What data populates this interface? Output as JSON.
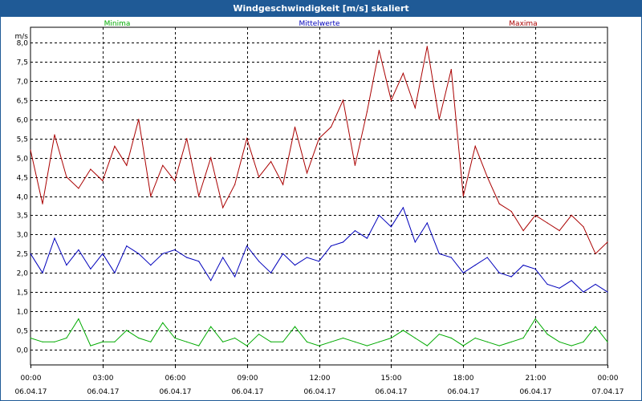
{
  "window": {
    "title": "Windgeschwindigkeit [m/s] skaliert"
  },
  "chart_data": {
    "type": "line",
    "title": "Windgeschwindigkeit [m/s] skaliert",
    "ylabel": "m/s",
    "ylim": [
      -0.4,
      8.4
    ],
    "yticks": [
      "0,0",
      "0,5",
      "1,0",
      "1,5",
      "2,0",
      "2,5",
      "3,0",
      "3,5",
      "4,0",
      "4,5",
      "5,0",
      "5,5",
      "6,0",
      "6,5",
      "7,0",
      "7,5",
      "8,0"
    ],
    "ytick_values": [
      0,
      0.5,
      1,
      1.5,
      2,
      2.5,
      3,
      3.5,
      4,
      4.5,
      5,
      5.5,
      6,
      6.5,
      7,
      7.5,
      8
    ],
    "xlim": [
      0,
      24
    ],
    "xticks": [
      {
        "time": "00:00",
        "date": "06.04.17",
        "h": 0
      },
      {
        "time": "03:00",
        "date": "06.04.17",
        "h": 3
      },
      {
        "time": "06:00",
        "date": "06.04.17",
        "h": 6
      },
      {
        "time": "09:00",
        "date": "06.04.17",
        "h": 9
      },
      {
        "time": "12:00",
        "date": "06.04.17",
        "h": 12
      },
      {
        "time": "15:00",
        "date": "06.04.17",
        "h": 15
      },
      {
        "time": "18:00",
        "date": "06.04.17",
        "h": 18
      },
      {
        "time": "21:00",
        "date": "06.04.17",
        "h": 21
      },
      {
        "time": "00:00",
        "date": "07.04.17",
        "h": 24
      }
    ],
    "grid": true,
    "legend": "top",
    "series": [
      {
        "name": "Minima",
        "color": "#00aa00",
        "x": [
          0,
          0.5,
          1,
          1.5,
          2,
          2.5,
          3,
          3.5,
          4,
          4.5,
          5,
          5.5,
          6,
          6.5,
          7,
          7.5,
          8,
          8.5,
          9,
          9.5,
          10,
          10.5,
          11,
          11.5,
          12,
          12.5,
          13,
          13.5,
          14,
          14.5,
          15,
          15.5,
          16,
          16.5,
          17,
          17.5,
          18,
          18.5,
          19,
          19.5,
          20,
          20.5,
          21,
          21.5,
          22,
          22.5,
          23,
          23.5,
          24
        ],
        "values": [
          0.3,
          0.2,
          0.2,
          0.3,
          0.8,
          0.1,
          0.2,
          0.2,
          0.5,
          0.3,
          0.2,
          0.7,
          0.3,
          0.2,
          0.1,
          0.6,
          0.2,
          0.3,
          0.1,
          0.4,
          0.2,
          0.2,
          0.6,
          0.2,
          0.1,
          0.2,
          0.3,
          0.2,
          0.1,
          0.2,
          0.3,
          0.5,
          0.3,
          0.1,
          0.4,
          0.3,
          0.1,
          0.3,
          0.2,
          0.1,
          0.2,
          0.3,
          0.8,
          0.4,
          0.2,
          0.1,
          0.2,
          0.6,
          0.2
        ]
      },
      {
        "name": "Mittelwerte",
        "color": "#0000bb",
        "x": [
          0,
          0.5,
          1,
          1.5,
          2,
          2.5,
          3,
          3.5,
          4,
          4.5,
          5,
          5.5,
          6,
          6.5,
          7,
          7.5,
          8,
          8.5,
          9,
          9.5,
          10,
          10.5,
          11,
          11.5,
          12,
          12.5,
          13,
          13.5,
          14,
          14.5,
          15,
          15.5,
          16,
          16.5,
          17,
          17.5,
          18,
          18.5,
          19,
          19.5,
          20,
          20.5,
          21,
          21.5,
          22,
          22.5,
          23,
          23.5,
          24
        ],
        "values": [
          2.5,
          2.0,
          2.9,
          2.2,
          2.6,
          2.1,
          2.5,
          2.0,
          2.7,
          2.5,
          2.2,
          2.5,
          2.6,
          2.4,
          2.3,
          1.8,
          2.4,
          1.9,
          2.7,
          2.3,
          2.0,
          2.5,
          2.2,
          2.4,
          2.3,
          2.7,
          2.8,
          3.1,
          2.9,
          3.5,
          3.2,
          3.7,
          2.8,
          3.3,
          2.5,
          2.4,
          2.0,
          2.2,
          2.4,
          2.0,
          1.9,
          2.2,
          2.1,
          1.7,
          1.6,
          1.8,
          1.5,
          1.7,
          1.5
        ]
      },
      {
        "name": "Maxima",
        "color": "#aa0000",
        "x": [
          0,
          0.5,
          1,
          1.5,
          2,
          2.5,
          3,
          3.5,
          4,
          4.5,
          5,
          5.5,
          6,
          6.5,
          7,
          7.5,
          8,
          8.5,
          9,
          9.5,
          10,
          10.5,
          11,
          11.5,
          12,
          12.5,
          13,
          13.5,
          14,
          14.5,
          15,
          15.5,
          16,
          16.5,
          17,
          17.5,
          18,
          18.5,
          19,
          19.5,
          20,
          20.5,
          21,
          21.5,
          22,
          22.5,
          23,
          23.5,
          24
        ],
        "values": [
          5.2,
          3.8,
          5.6,
          4.5,
          4.2,
          4.7,
          4.4,
          5.3,
          4.8,
          6.0,
          4.0,
          4.8,
          4.4,
          5.5,
          4.0,
          5.0,
          3.7,
          4.3,
          5.5,
          4.5,
          4.9,
          4.3,
          5.8,
          4.6,
          5.5,
          5.8,
          6.5,
          4.8,
          6.2,
          7.8,
          6.5,
          7.2,
          6.3,
          7.9,
          6.0,
          7.3,
          4.0,
          5.3,
          4.5,
          3.8,
          3.6,
          3.1,
          3.5,
          3.3,
          3.1,
          3.5,
          3.2,
          2.5,
          2.8
        ]
      }
    ]
  }
}
